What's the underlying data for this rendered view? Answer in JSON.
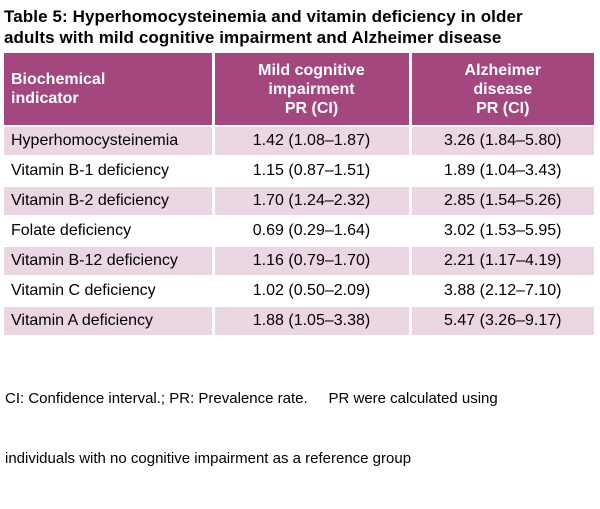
{
  "title": {
    "full": "Table 5: Hyperhomocysteinemia and vitamin deficiency in older adults with mild cognitive impairment and Alzheimer disease",
    "line1": "Table 5: Hyperhomocysteinemia and vitamin deficiency in older",
    "line2": "adults with mild cognitive impairment and Alzheimer disease"
  },
  "header": {
    "col1": {
      "line1": "Biochemical",
      "line2": "indicator"
    },
    "col2": {
      "line1": "Mild cognitive",
      "line2": "impairment",
      "line3": "PR (CI)"
    },
    "col3": {
      "line1": "Alzheimer",
      "line2": "disease",
      "line3": "PR (CI)"
    }
  },
  "chart_data": {
    "type": "table",
    "title": "Table 5: Hyperhomocysteinemia and vitamin deficiency in older adults with mild cognitive impairment and Alzheimer disease",
    "columns": [
      "Biochemical indicator",
      "Mild cognitive impairment PR (CI)",
      "Alzheimer disease PR (CI)"
    ],
    "rows": [
      [
        "Hyperhomocysteinemia",
        "1.42 (1.08–1.87)",
        "3.26 (1.84–5.80)"
      ],
      [
        "Vitamin B-1 deficiency",
        "1.15 (0.87–1.51)",
        "1.89 (1.04–3.43)"
      ],
      [
        "Vitamin B-2 deficiency",
        "1.70 (1.24–2.32)",
        "2.85 (1.54–5.26)"
      ],
      [
        "Folate deficiency",
        "0.69 (0.29–1.64)",
        "3.02 (1.53–5.95)"
      ],
      [
        "Vitamin B-12 deficiency",
        "1.16 (0.79–1.70)",
        "2.21 (1.17–4.19)"
      ],
      [
        "Vitamin C deficiency",
        "1.02 (0.50–2.09)",
        "3.88 (2.12–7.10)"
      ],
      [
        "Vitamin A deficiency",
        "1.88 (1.05–3.38)",
        "5.47 (3.26–9.17)"
      ]
    ],
    "footnote": "CI: Confidence interval.; PR: Prevalence rate.     PR were calculated using individuals with no cognitive impairment as a reference group"
  },
  "footnote": {
    "line1": "CI: Confidence interval.; PR: Prevalence rate.     PR were calculated using",
    "line2": "individuals with no cognitive impairment as a reference group"
  },
  "colors": {
    "header_bg": "#A4477E",
    "header_text": "#FFFFFF",
    "row_alt_bg": "#EBD7E3",
    "row_bg": "#FFFFFF",
    "text": "#000000"
  }
}
